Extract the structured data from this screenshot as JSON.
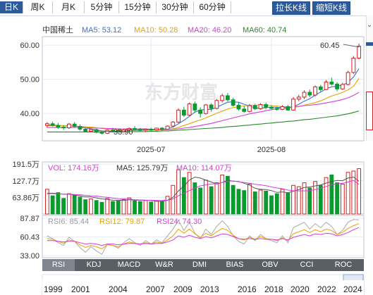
{
  "tabs": [
    {
      "label": "日K",
      "active": true
    },
    {
      "label": "周K",
      "active": false
    },
    {
      "label": "月K",
      "active": false
    },
    {
      "label": "5分钟",
      "active": false
    },
    {
      "label": "15分钟",
      "active": false
    },
    {
      "label": "30分钟",
      "active": false
    },
    {
      "label": "60分钟",
      "active": false
    }
  ],
  "toolbar": {
    "stretch_label": "拉长K线",
    "shorten_label": "缩短K线"
  },
  "main_legend": {
    "name": "中国稀土",
    "ma5": "MA5: 53.12",
    "ma10": "MA10: 50.28",
    "ma20": "MA20: 46.20",
    "ma60": "MA60: 40.74"
  },
  "annotations": {
    "high": "60.45",
    "low": "33.90"
  },
  "watermark": "东方财富",
  "vol_legend": {
    "vol": "VOL: 174.16万",
    "ma5": "MA5: 125.79万",
    "ma10": "MA10: 114.07万"
  },
  "rsi_legend": {
    "rsi6": "RSI6: 85.44",
    "rsi12": "RSI12: 79.87",
    "rsi24": "RSI24: 74.30"
  },
  "indicator_tabs": [
    "RSI",
    "KDJ",
    "MACD",
    "W&R",
    "DMI",
    "BIAS",
    "OBV",
    "CCI",
    "ROC"
  ],
  "timeline_years": [
    "1999",
    "2001",
    "2004",
    "2007",
    "2009",
    "2013",
    "2016",
    "2018",
    "2020",
    "2022",
    "2024"
  ],
  "colors": {
    "up": "#d61f1f",
    "down": "#0a9a2f",
    "ma5": "#3b6fd8",
    "ma10": "#e9a200",
    "ma20": "#d63dd6",
    "ma60": "#2a8a2a",
    "accent": "#2d5a9a"
  },
  "chart_data": [
    {
      "type": "candlestick",
      "x_tick_labels": [
        "2025-07",
        "2025-08"
      ],
      "y_ticks": [
        40.0,
        50.0,
        60.0
      ],
      "y_tick_labels": [
        "40.00",
        "50.00",
        "60.00"
      ],
      "ylim": [
        32.0,
        62.5
      ],
      "ohlc": [
        [
          36.5,
          37.5,
          35.8,
          37.0
        ],
        [
          37.0,
          37.6,
          36.2,
          36.5
        ],
        [
          36.5,
          37.2,
          35.5,
          36.0
        ],
        [
          36.0,
          36.6,
          35.2,
          35.8
        ],
        [
          35.8,
          37.2,
          35.5,
          36.9
        ],
        [
          36.9,
          37.5,
          36.0,
          36.2
        ],
        [
          36.2,
          36.8,
          35.0,
          35.4
        ],
        [
          35.4,
          35.9,
          34.5,
          34.8
        ],
        [
          34.8,
          35.6,
          34.6,
          35.3
        ],
        [
          35.3,
          35.5,
          34.2,
          34.5
        ],
        [
          34.5,
          34.9,
          33.9,
          34.2
        ],
        [
          34.2,
          35.3,
          34.0,
          35.1
        ],
        [
          35.1,
          35.8,
          34.6,
          35.0
        ],
        [
          35.0,
          35.6,
          34.4,
          34.7
        ],
        [
          34.7,
          35.4,
          34.5,
          35.2
        ],
        [
          35.2,
          35.9,
          34.9,
          35.6
        ],
        [
          35.6,
          36.3,
          35.0,
          35.3
        ],
        [
          35.3,
          35.7,
          34.8,
          35.1
        ],
        [
          35.1,
          35.6,
          34.6,
          35.4
        ],
        [
          35.4,
          35.8,
          34.9,
          35.2
        ],
        [
          35.2,
          35.9,
          35.0,
          35.7
        ],
        [
          35.7,
          36.0,
          35.0,
          35.4
        ],
        [
          35.4,
          36.5,
          35.2,
          36.3
        ],
        [
          36.3,
          37.8,
          36.0,
          37.5
        ],
        [
          37.5,
          41.5,
          37.2,
          41.0
        ],
        [
          41.0,
          42.0,
          39.0,
          39.5
        ],
        [
          39.5,
          43.2,
          39.2,
          42.8
        ],
        [
          42.8,
          43.5,
          40.2,
          41.0
        ],
        [
          41.0,
          41.8,
          38.8,
          40.0
        ],
        [
          40.0,
          42.8,
          39.7,
          42.5
        ],
        [
          42.5,
          43.0,
          40.5,
          41.5
        ],
        [
          41.5,
          44.2,
          41.2,
          43.8
        ],
        [
          43.8,
          45.8,
          43.2,
          45.2
        ],
        [
          45.2,
          46.0,
          43.5,
          44.0
        ],
        [
          44.0,
          44.6,
          42.0,
          42.4
        ],
        [
          42.4,
          43.2,
          40.8,
          41.3
        ],
        [
          41.3,
          42.2,
          40.2,
          40.6
        ],
        [
          40.6,
          42.8,
          40.3,
          42.3
        ],
        [
          42.3,
          42.8,
          41.0,
          41.4
        ],
        [
          41.4,
          43.0,
          41.1,
          42.6
        ],
        [
          42.6,
          43.2,
          41.2,
          41.8
        ],
        [
          41.8,
          42.4,
          41.2,
          41.5
        ],
        [
          41.5,
          42.0,
          40.8,
          41.2
        ],
        [
          41.2,
          42.4,
          41.0,
          42.0
        ],
        [
          42.0,
          42.5,
          40.8,
          41.0
        ],
        [
          41.0,
          44.8,
          40.8,
          44.2
        ],
        [
          44.2,
          45.5,
          43.6,
          44.8
        ],
        [
          44.8,
          46.8,
          44.2,
          46.2
        ],
        [
          46.2,
          47.0,
          44.8,
          45.4
        ],
        [
          45.4,
          48.2,
          45.0,
          47.8
        ],
        [
          47.8,
          48.4,
          46.5,
          47.0
        ],
        [
          47.0,
          49.8,
          46.8,
          49.2
        ],
        [
          49.2,
          50.5,
          48.2,
          48.6
        ],
        [
          48.6,
          49.2,
          46.5,
          47.2
        ],
        [
          47.2,
          49.0,
          46.9,
          48.5
        ],
        [
          48.5,
          52.5,
          48.2,
          52.0
        ],
        [
          52.0,
          56.8,
          51.6,
          56.2
        ],
        [
          56.2,
          60.45,
          55.8,
          59.7
        ]
      ],
      "series": [
        {
          "name": "MA5",
          "values": [
            36.6,
            36.6,
            36.5,
            36.4,
            36.4,
            36.3,
            36.1,
            35.8,
            35.5,
            35.2,
            34.9,
            34.8,
            34.8,
            34.8,
            34.9,
            35.0,
            35.2,
            35.3,
            35.3,
            35.3,
            35.3,
            35.3,
            35.6,
            36.0,
            37.0,
            38.0,
            39.2,
            40.4,
            41.0,
            41.2,
            41.2,
            41.8,
            42.6,
            43.3,
            43.4,
            43.3,
            42.7,
            42.2,
            41.6,
            41.6,
            41.7,
            41.9,
            41.8,
            41.7,
            41.5,
            42.0,
            42.7,
            43.6,
            44.3,
            45.4,
            46.3,
            47.2,
            47.8,
            48.0,
            48.3,
            49.1,
            50.7,
            53.12
          ]
        },
        {
          "name": "MA10",
          "values": [
            36.4,
            36.4,
            36.4,
            36.4,
            36.3,
            36.3,
            36.2,
            36.1,
            36.0,
            35.8,
            35.6,
            35.4,
            35.3,
            35.2,
            35.1,
            35.0,
            35.0,
            35.0,
            35.1,
            35.1,
            35.2,
            35.2,
            35.3,
            35.5,
            35.9,
            36.5,
            37.0,
            37.6,
            38.1,
            38.7,
            39.4,
            40.1,
            40.7,
            41.3,
            41.7,
            42.0,
            42.2,
            42.4,
            42.4,
            42.5,
            42.4,
            42.3,
            42.2,
            42.0,
            41.9,
            41.8,
            42.0,
            42.4,
            42.8,
            43.2,
            43.7,
            44.4,
            45.1,
            45.6,
            46.2,
            46.9,
            48.0,
            50.28
          ]
        },
        {
          "name": "MA20",
          "values": [
            35.9,
            35.9,
            35.9,
            35.9,
            35.9,
            35.9,
            35.9,
            35.8,
            35.8,
            35.7,
            35.7,
            35.6,
            35.6,
            35.5,
            35.5,
            35.5,
            35.5,
            35.5,
            35.5,
            35.4,
            35.4,
            35.3,
            35.3,
            35.4,
            35.5,
            35.7,
            35.9,
            36.2,
            36.5,
            36.8,
            37.1,
            37.5,
            37.9,
            38.3,
            38.7,
            39.1,
            39.5,
            39.9,
            40.2,
            40.5,
            40.8,
            41.1,
            41.4,
            41.6,
            41.8,
            42.0,
            42.1,
            42.3,
            42.4,
            42.6,
            42.8,
            43.1,
            43.4,
            43.7,
            44.1,
            44.6,
            45.3,
            46.2
          ]
        },
        {
          "name": "MA60",
          "values": [
            34.6,
            34.6,
            34.6,
            34.6,
            34.6,
            34.6,
            34.6,
            34.6,
            34.6,
            34.6,
            34.6,
            34.6,
            34.6,
            34.6,
            34.6,
            34.7,
            34.7,
            34.7,
            34.7,
            34.8,
            34.8,
            34.9,
            34.9,
            35.0,
            35.1,
            35.2,
            35.3,
            35.4,
            35.5,
            35.6,
            35.7,
            35.8,
            35.9,
            36.1,
            36.2,
            36.3,
            36.5,
            36.6,
            36.8,
            36.9,
            37.1,
            37.2,
            37.4,
            37.5,
            37.7,
            37.8,
            38.0,
            38.2,
            38.3,
            38.5,
            38.7,
            38.9,
            39.1,
            39.3,
            39.6,
            39.9,
            40.3,
            40.74
          ]
        }
      ]
    },
    {
      "type": "bar",
      "y_tick_labels": [
        "191.5万",
        "127.7万",
        "63.86万"
      ],
      "y_ticks": [
        191.5,
        127.7,
        63.86
      ],
      "ylim": [
        0,
        200
      ],
      "values": [
        95,
        70,
        82,
        60,
        78,
        72,
        65,
        55,
        58,
        52,
        45,
        60,
        48,
        50,
        55,
        62,
        50,
        48,
        52,
        46,
        50,
        48,
        68,
        110,
        170,
        140,
        160,
        120,
        100,
        130,
        105,
        120,
        150,
        145,
        110,
        95,
        90,
        115,
        85,
        92,
        88,
        70,
        78,
        95,
        80,
        110,
        105,
        120,
        100,
        125,
        110,
        140,
        150,
        120,
        115,
        160,
        165,
        174.16
      ],
      "series": [
        {
          "name": "MA5",
          "values": [
            80,
            80,
            78,
            76,
            77,
            72,
            70,
            66,
            66,
            62,
            58,
            56,
            53,
            53,
            52,
            55,
            53,
            53,
            53,
            52,
            49,
            49,
            53,
            64,
            89,
            107,
            130,
            142,
            138,
            130,
            123,
            115,
            121,
            130,
            126,
            125,
            118,
            111,
            99,
            95,
            94,
            90,
            83,
            85,
            82,
            87,
            94,
            102,
            104,
            108,
            112,
            119,
            125,
            129,
            128,
            138,
            142,
            125.79
          ]
        },
        {
          "name": "MA10",
          "values": [
            78,
            78,
            77,
            76,
            76,
            75,
            74,
            72,
            70,
            69,
            66,
            64,
            61,
            59,
            58,
            57,
            55,
            54,
            53,
            53,
            52,
            52,
            53,
            58,
            70,
            80,
            90,
            100,
            108,
            112,
            115,
            117,
            121,
            126,
            127,
            124,
            121,
            118,
            114,
            112,
            109,
            104,
            100,
            97,
            92,
            90,
            89,
            89,
            90,
            94,
            99,
            106,
            113,
            116,
            118,
            123,
            129,
            114.07
          ]
        }
      ]
    },
    {
      "type": "line",
      "y_ticks": [
        87.87,
        60.43,
        33.0
      ],
      "y_tick_labels": [
        "87.87",
        "60.43",
        "33.00"
      ],
      "ylim": [
        30,
        92
      ],
      "series": [
        {
          "name": "RSI6",
          "values": [
            62,
            58,
            52,
            48,
            60,
            54,
            45,
            38,
            46,
            40,
            35,
            50,
            48,
            44,
            52,
            58,
            52,
            48,
            55,
            50,
            56,
            52,
            62,
            72,
            85,
            70,
            82,
            66,
            58,
            72,
            64,
            76,
            84,
            76,
            62,
            54,
            50,
            62,
            55,
            64,
            58,
            55,
            52,
            62,
            52,
            74,
            78,
            82,
            72,
            80,
            74,
            82,
            76,
            64,
            70,
            82,
            86,
            85.44
          ]
        },
        {
          "name": "RSI12",
          "values": [
            58,
            57,
            54,
            51,
            56,
            54,
            49,
            45,
            48,
            46,
            43,
            49,
            48,
            46,
            50,
            53,
            51,
            50,
            52,
            50,
            53,
            51,
            56,
            62,
            72,
            66,
            72,
            65,
            60,
            66,
            62,
            68,
            73,
            70,
            63,
            58,
            56,
            60,
            57,
            61,
            58,
            57,
            55,
            59,
            55,
            65,
            68,
            71,
            67,
            71,
            68,
            72,
            70,
            64,
            67,
            73,
            77,
            79.87
          ]
        },
        {
          "name": "RSI24",
          "values": [
            55,
            55,
            54,
            53,
            54,
            54,
            52,
            50,
            51,
            50,
            48,
            50,
            50,
            49,
            50,
            51,
            51,
            50,
            51,
            50,
            51,
            51,
            53,
            56,
            62,
            60,
            63,
            60,
            58,
            61,
            59,
            62,
            65,
            64,
            61,
            58,
            57,
            58,
            57,
            58,
            57,
            57,
            56,
            58,
            56,
            60,
            62,
            64,
            62,
            65,
            64,
            66,
            65,
            62,
            64,
            67,
            71,
            74.3
          ]
        }
      ]
    }
  ]
}
